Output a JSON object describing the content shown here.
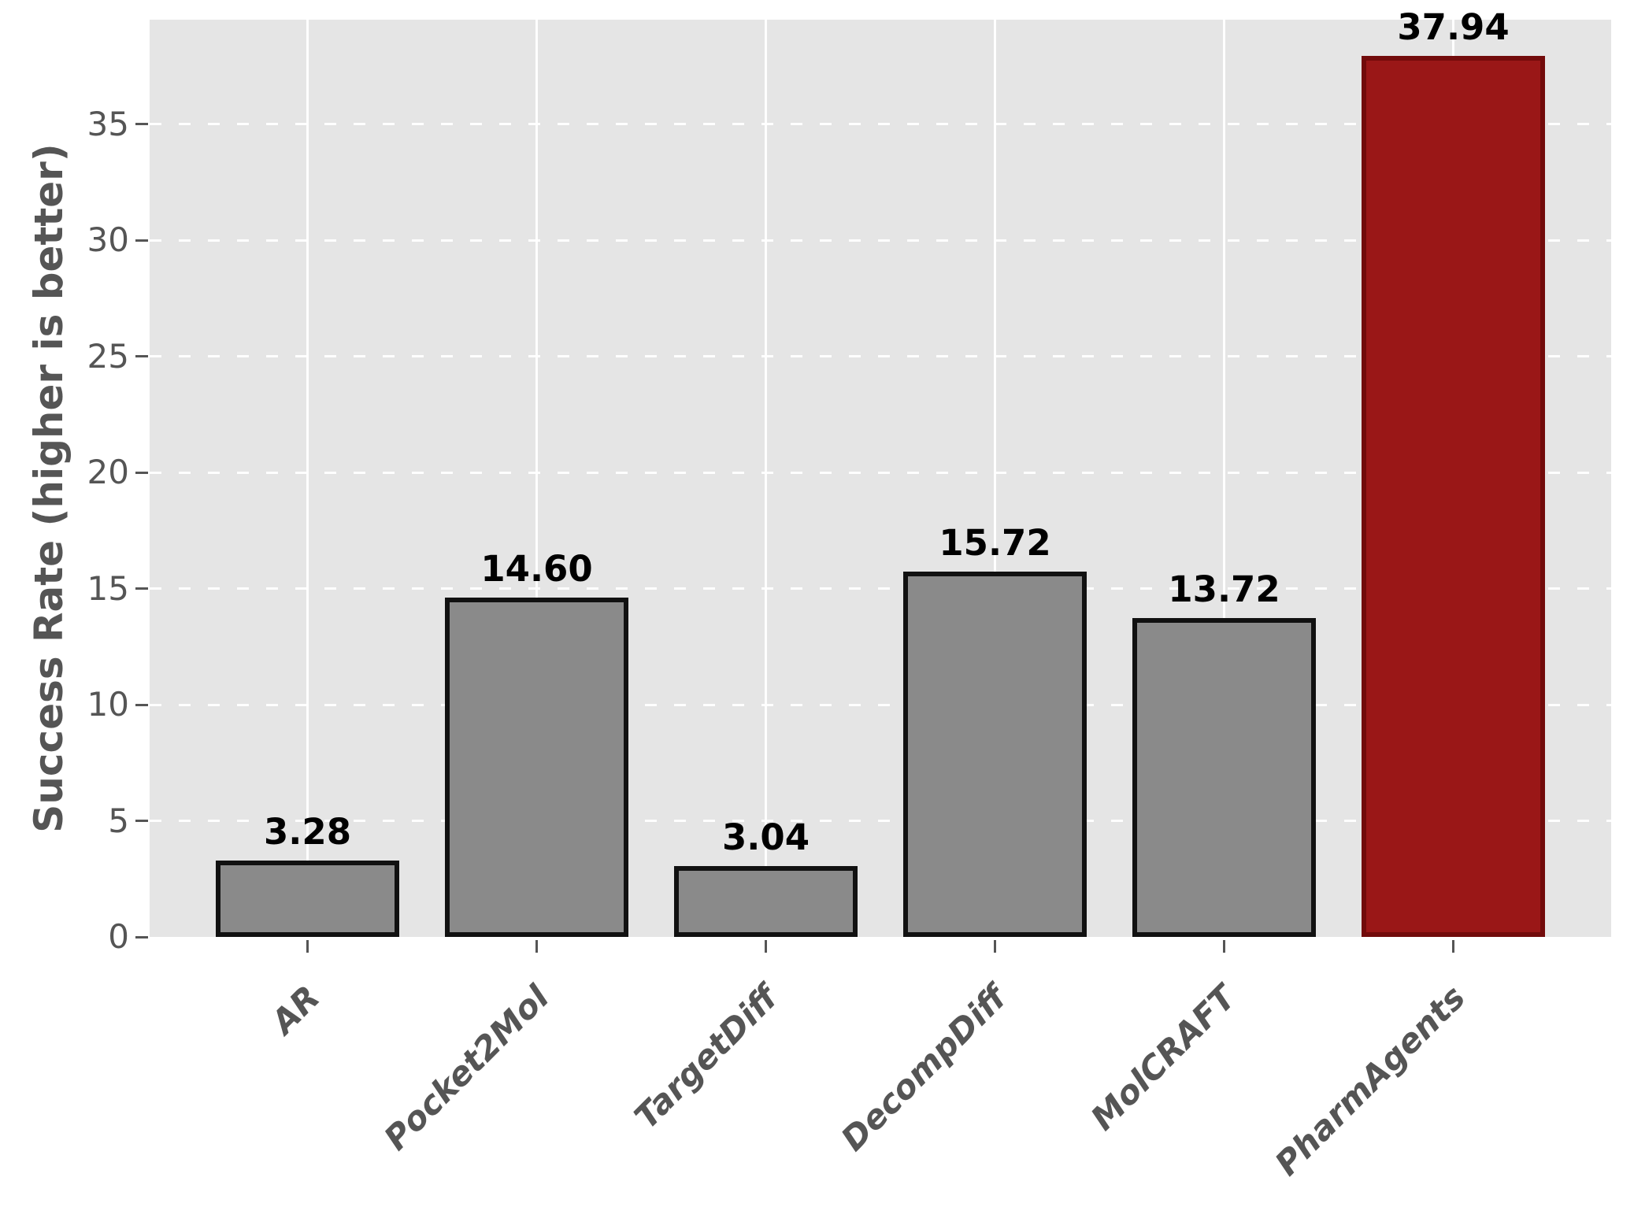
{
  "chart_data": {
    "type": "bar",
    "title": "",
    "xlabel": "",
    "ylabel": "Success Rate (higher is better)",
    "categories": [
      "AR",
      "Pocket2Mol",
      "TargetDiff",
      "DecompDiff",
      "MolCRAFT",
      "PharmAgents"
    ],
    "values": [
      3.28,
      14.6,
      3.04,
      15.72,
      13.72,
      37.94
    ],
    "bar_labels": [
      "3.28",
      "14.60",
      "3.04",
      "15.72",
      "13.72",
      "37.94"
    ],
    "highlight_index": 5,
    "yticks": [
      0,
      5,
      10,
      15,
      20,
      25,
      30,
      35
    ],
    "ytick_labels": [
      "0",
      "5",
      "10",
      "15",
      "20",
      "25",
      "30",
      "35"
    ],
    "ylim": [
      0,
      39.5
    ],
    "grid": {
      "horizontal_style": "dashed",
      "vertical_style": "solid",
      "color": "#ffffff"
    },
    "legend_position": "none",
    "colors": {
      "bar_fill": "#8a8a8a",
      "bar_edge": "#111111",
      "highlight_fill": "#9a1717",
      "highlight_edge": "#720b0b",
      "plot_background": "#e5e5e5",
      "figure_background": "#ffffff",
      "tick_text": "#555555",
      "value_text": "#000000"
    }
  }
}
